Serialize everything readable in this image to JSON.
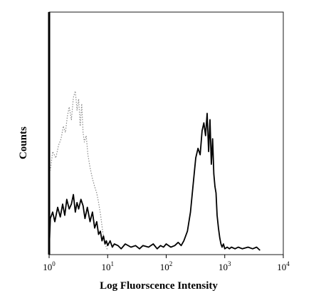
{
  "chart_data": {
    "type": "histogram",
    "title": "",
    "xlabel": "Log Fluorscence Intensity",
    "ylabel": "Counts",
    "x_scale": "log",
    "xlim": [
      1,
      10000
    ],
    "ylim": [
      0,
      100
    ],
    "grid": false,
    "legend": "none",
    "x_ticks": [
      {
        "value": 1,
        "base": "10",
        "exp": "0"
      },
      {
        "value": 10,
        "base": "10",
        "exp": "1"
      },
      {
        "value": 100,
        "base": "10",
        "exp": "2"
      },
      {
        "value": 1000,
        "base": "10",
        "exp": "3"
      },
      {
        "value": 10000,
        "base": "10",
        "exp": "4"
      }
    ],
    "series": [
      {
        "style": "dotted",
        "color": "#8a8a8a",
        "x": [
          1.05,
          1.15,
          1.3,
          1.45,
          1.6,
          1.75,
          1.9,
          2.05,
          2.2,
          2.4,
          2.6,
          2.8,
          3.0,
          3.2,
          3.4,
          3.6,
          3.8,
          4.0,
          4.3,
          4.6,
          5.0,
          5.5,
          6.0,
          6.5,
          7.0,
          7.6,
          8.2,
          9.0,
          10.0
        ],
        "y": [
          50,
          62,
          58,
          66,
          70,
          78,
          74,
          84,
          90,
          82,
          96,
          100,
          88,
          95,
          78,
          92,
          74,
          68,
          72,
          60,
          52,
          45,
          40,
          36,
          30,
          22,
          12,
          4,
          0
        ]
      },
      {
        "style": "solid",
        "color": "#000000",
        "x": [
          1.0,
          1.05,
          1.15,
          1.25,
          1.4,
          1.55,
          1.7,
          1.85,
          2.0,
          2.2,
          2.4,
          2.6,
          2.8,
          3.0,
          3.2,
          3.5,
          3.8,
          4.1,
          4.5,
          5.0,
          5.5,
          6.0,
          6.5,
          7.0,
          7.5,
          8.0,
          8.5,
          9.0,
          9.5,
          10,
          11,
          12,
          13,
          15,
          17,
          20,
          25,
          30,
          35,
          40,
          50,
          60,
          70,
          80,
          90,
          100,
          120,
          140,
          160,
          180,
          200,
          230,
          260,
          290,
          320,
          350,
          380,
          410,
          440,
          470,
          500,
          530,
          560,
          590,
          620,
          650,
          680,
          710,
          740,
          780,
          820,
          860,
          900,
          950,
          1000,
          1100,
          1200,
          1300,
          1500,
          1700,
          2000,
          2500,
          3000,
          3500,
          4000
        ],
        "y": [
          0,
          20,
          24,
          18,
          27,
          21,
          29,
          22,
          32,
          26,
          29,
          35,
          24,
          30,
          26,
          32,
          28,
          20,
          27,
          18,
          24,
          14,
          18,
          10,
          12,
          6,
          9,
          4,
          6,
          3,
          6,
          2,
          4,
          3,
          1,
          4,
          2,
          3,
          1,
          3,
          2,
          4,
          1,
          3,
          2,
          4,
          2,
          3,
          5,
          3,
          6,
          12,
          24,
          42,
          58,
          64,
          60,
          75,
          80,
          72,
          86,
          62,
          82,
          54,
          70,
          48,
          40,
          36,
          22,
          14,
          8,
          4,
          2,
          4,
          1,
          2,
          1,
          2,
          1,
          2,
          1,
          2,
          1,
          2,
          0
        ]
      }
    ]
  }
}
